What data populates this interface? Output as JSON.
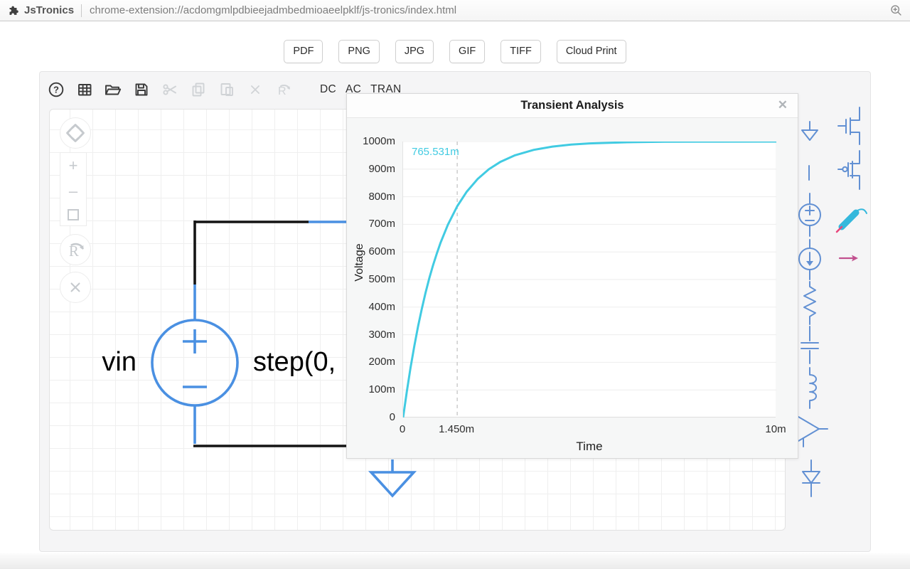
{
  "colors": {
    "wire_blue": "#4a90e2",
    "wire_black": "#141414",
    "curve_cyan": "#41cbe2",
    "palette_blue": "#6290d3",
    "probe_cyan": "#35b8dc",
    "probe_red": "#e8467c",
    "current_arrow_magenta": "#c2508f"
  },
  "browser": {
    "extension_icon": "puzzle-icon",
    "app_name": "JsTronics",
    "url": "chrome-extension://acdomgmlpdbieejadmbedmioaeelpklf/js-tronics/index.html",
    "zoom_icon": "zoom-in-magnifier"
  },
  "export_buttons": {
    "pdf": "PDF",
    "png": "PNG",
    "jpg": "JPG",
    "gif": "GIF",
    "tiff": "TIFF",
    "cloud_print": "Cloud Print"
  },
  "toolbar": {
    "icons": [
      {
        "name": "help-icon",
        "enabled": true
      },
      {
        "name": "grid-table-icon",
        "enabled": true
      },
      {
        "name": "open-folder-icon",
        "enabled": true
      },
      {
        "name": "save-floppy-icon",
        "enabled": true
      },
      {
        "name": "cut-scissors-icon",
        "enabled": false
      },
      {
        "name": "copy-icon",
        "enabled": false
      },
      {
        "name": "paste-icon",
        "enabled": false
      },
      {
        "name": "delete-x-icon",
        "enabled": false
      },
      {
        "name": "rotate-r-icon",
        "enabled": false
      }
    ],
    "menu": {
      "dc": "DC",
      "ac": "AC",
      "tran": "TRAN"
    }
  },
  "canvas_tools": [
    "pan",
    "zoom-in",
    "zoom-out",
    "zoom-rect",
    "rotate",
    "delete"
  ],
  "circuit": {
    "source_name": "vin",
    "source_value": "step(0,",
    "components_visible": [
      "voltage-source",
      "ground",
      "wires"
    ]
  },
  "sidebar_components": [
    "ground",
    "wire",
    "voltage-source",
    "current-source",
    "resistor",
    "capacitor",
    "inductor",
    "opamp",
    "diode",
    "nmos-transistor",
    "pmos-transistor",
    "probe-pen",
    "current-probe"
  ],
  "dialog": {
    "title": "Transient Analysis",
    "close_icon": "✕"
  },
  "chart_data": {
    "type": "line",
    "title": "Transient Analysis",
    "xlabel": "Time",
    "ylabel": "Voltage",
    "xlim": [
      0,
      10
    ],
    "ylim": [
      0,
      1000
    ],
    "grid": "horizontal",
    "x_ticks": [
      {
        "v": 0,
        "label": "0"
      },
      {
        "v": 1.45,
        "label": "1.450m"
      },
      {
        "v": 10,
        "label": "10m"
      }
    ],
    "y_ticks": [
      {
        "v": 0,
        "label": "0"
      },
      {
        "v": 100,
        "label": "100m"
      },
      {
        "v": 200,
        "label": "200m"
      },
      {
        "v": 300,
        "label": "300m"
      },
      {
        "v": 400,
        "label": "400m"
      },
      {
        "v": 500,
        "label": "500m"
      },
      {
        "v": 600,
        "label": "600m"
      },
      {
        "v": 700,
        "label": "700m"
      },
      {
        "v": 800,
        "label": "800m"
      },
      {
        "v": 900,
        "label": "900m"
      },
      {
        "v": 1000,
        "label": "1000m"
      }
    ],
    "cursor": {
      "x": 1.45,
      "value_label": "765.531m"
    },
    "series": [
      {
        "name": "voltage",
        "color": "#41cbe2",
        "x": [
          0,
          0.1,
          0.2,
          0.3,
          0.4,
          0.5,
          0.6,
          0.7,
          0.8,
          0.9,
          1.0,
          1.2,
          1.45,
          1.7,
          2.0,
          2.3,
          2.6,
          3.0,
          3.5,
          4.0,
          4.5,
          5.0,
          6.0,
          7.0,
          8.0,
          10.0
        ],
        "y": [
          0,
          95.2,
          181.3,
          259.2,
          329.7,
          393.5,
          451.2,
          503.4,
          550.7,
          593.4,
          632.1,
          698.8,
          765.5,
          817.3,
          864.7,
          899.7,
          925.7,
          950.2,
          969.8,
          981.7,
          988.9,
          993.3,
          997.5,
          999.1,
          999.7,
          1000
        ]
      }
    ]
  }
}
